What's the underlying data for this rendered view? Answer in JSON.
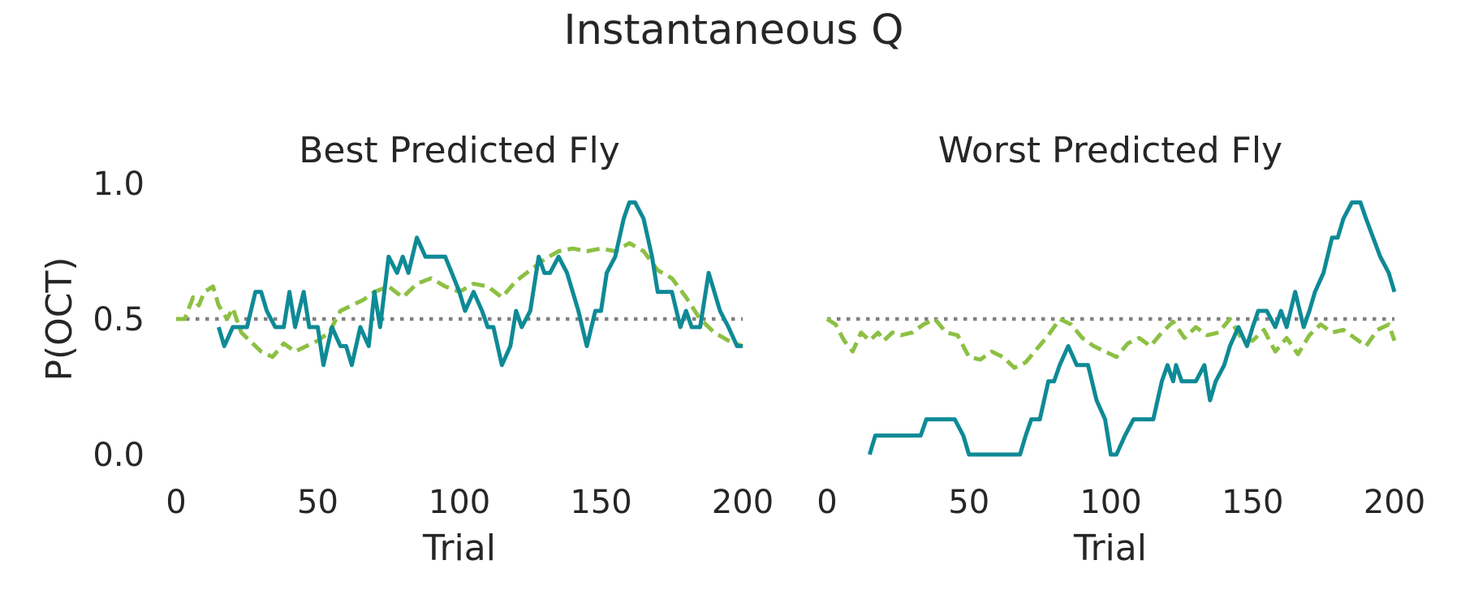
{
  "suptitle": "Instantaneous Q",
  "colors": {
    "observed": "#0e8a96",
    "predicted": "#8cc043",
    "chance": "#808080",
    "text": "#262626"
  },
  "chart_data": [
    {
      "type": "line",
      "title": "Best Predicted Fly",
      "xlabel": "Trial",
      "ylabel": "P(OCT)",
      "xlim": [
        0,
        200
      ],
      "ylim": [
        0,
        1
      ],
      "xticks": [
        "0",
        "50",
        "100",
        "150",
        "200"
      ],
      "yticks": [
        "0.0",
        "0.5",
        "1.0"
      ],
      "grid": false,
      "series": [
        {
          "role": "observed",
          "style": "solid",
          "x": [
            15,
            17,
            20,
            25,
            28,
            30,
            32,
            35,
            38,
            40,
            42,
            45,
            47,
            50,
            52,
            55,
            58,
            60,
            62,
            65,
            68,
            70,
            72,
            75,
            78,
            80,
            82,
            85,
            88,
            90,
            92,
            95,
            100,
            102,
            105,
            108,
            110,
            112,
            115,
            118,
            120,
            122,
            125,
            128,
            130,
            132,
            135,
            138,
            140,
            142,
            145,
            148,
            150,
            152,
            155,
            158,
            160,
            162,
            165,
            168,
            170,
            172,
            175,
            178,
            180,
            182,
            185,
            188,
            190,
            192,
            195,
            198,
            200
          ],
          "y": [
            0.47,
            0.4,
            0.47,
            0.47,
            0.6,
            0.6,
            0.53,
            0.47,
            0.47,
            0.6,
            0.47,
            0.6,
            0.47,
            0.47,
            0.33,
            0.47,
            0.4,
            0.4,
            0.33,
            0.47,
            0.4,
            0.6,
            0.47,
            0.73,
            0.67,
            0.73,
            0.67,
            0.8,
            0.73,
            0.73,
            0.73,
            0.73,
            0.6,
            0.53,
            0.6,
            0.53,
            0.47,
            0.47,
            0.33,
            0.4,
            0.53,
            0.47,
            0.53,
            0.73,
            0.67,
            0.67,
            0.73,
            0.67,
            0.6,
            0.53,
            0.4,
            0.53,
            0.53,
            0.67,
            0.73,
            0.87,
            0.93,
            0.93,
            0.87,
            0.73,
            0.6,
            0.6,
            0.6,
            0.47,
            0.53,
            0.47,
            0.47,
            0.67,
            0.6,
            0.53,
            0.47,
            0.4,
            0.4
          ]
        },
        {
          "role": "predicted",
          "style": "dashed",
          "x": [
            0,
            3,
            6,
            8,
            10,
            13,
            15,
            18,
            20,
            23,
            26,
            30,
            34,
            38,
            42,
            46,
            50,
            54,
            58,
            62,
            66,
            70,
            75,
            80,
            85,
            90,
            95,
            100,
            105,
            110,
            115,
            120,
            125,
            130,
            135,
            140,
            145,
            150,
            155,
            160,
            165,
            170,
            175,
            180,
            185,
            190,
            195,
            200
          ],
          "y": [
            0.5,
            0.5,
            0.58,
            0.55,
            0.6,
            0.62,
            0.55,
            0.5,
            0.54,
            0.45,
            0.42,
            0.38,
            0.36,
            0.41,
            0.38,
            0.4,
            0.42,
            0.45,
            0.53,
            0.55,
            0.57,
            0.6,
            0.62,
            0.58,
            0.63,
            0.65,
            0.62,
            0.6,
            0.63,
            0.62,
            0.58,
            0.64,
            0.68,
            0.72,
            0.75,
            0.76,
            0.75,
            0.76,
            0.75,
            0.78,
            0.75,
            0.68,
            0.65,
            0.58,
            0.5,
            0.45,
            0.42,
            0.4
          ]
        },
        {
          "role": "chance",
          "style": "dotted",
          "x": [
            0,
            200
          ],
          "y": [
            0.5,
            0.5
          ]
        }
      ]
    },
    {
      "type": "line",
      "title": "Worst Predicted Fly",
      "xlabel": "Trial",
      "ylabel": "",
      "xlim": [
        0,
        200
      ],
      "ylim": [
        0,
        1
      ],
      "xticks": [
        "0",
        "50",
        "100",
        "150",
        "200"
      ],
      "yticks": [],
      "grid": false,
      "series": [
        {
          "role": "observed",
          "style": "solid",
          "x": [
            15,
            17,
            20,
            25,
            30,
            33,
            35,
            38,
            40,
            45,
            48,
            50,
            55,
            60,
            65,
            68,
            70,
            72,
            75,
            78,
            80,
            82,
            85,
            88,
            90,
            92,
            95,
            98,
            100,
            102,
            105,
            108,
            110,
            115,
            118,
            120,
            122,
            123,
            125,
            128,
            130,
            133,
            135,
            137,
            140,
            142,
            145,
            148,
            150,
            152,
            155,
            158,
            160,
            162,
            165,
            168,
            170,
            172,
            175,
            178,
            180,
            182,
            185,
            188,
            190,
            195,
            198,
            200
          ],
          "y": [
            0,
            0.07,
            0.07,
            0.07,
            0.07,
            0.07,
            0.13,
            0.13,
            0.13,
            0.13,
            0.07,
            0,
            0,
            0,
            0,
            0,
            0.07,
            0.13,
            0.13,
            0.27,
            0.27,
            0.33,
            0.4,
            0.33,
            0.33,
            0.33,
            0.2,
            0.13,
            0,
            0,
            0.07,
            0.13,
            0.13,
            0.13,
            0.27,
            0.33,
            0.27,
            0.33,
            0.27,
            0.27,
            0.27,
            0.33,
            0.2,
            0.27,
            0.33,
            0.4,
            0.47,
            0.4,
            0.47,
            0.53,
            0.53,
            0.47,
            0.53,
            0.47,
            0.6,
            0.47,
            0.53,
            0.6,
            0.67,
            0.8,
            0.8,
            0.87,
            0.93,
            0.93,
            0.87,
            0.73,
            0.67,
            0.6
          ]
        },
        {
          "role": "predicted",
          "style": "dashed",
          "x": [
            0,
            3,
            6,
            9,
            12,
            15,
            18,
            20,
            23,
            26,
            30,
            34,
            38,
            42,
            46,
            50,
            54,
            58,
            62,
            66,
            70,
            74,
            78,
            82,
            86,
            90,
            94,
            98,
            102,
            106,
            110,
            114,
            118,
            122,
            126,
            130,
            134,
            138,
            142,
            146,
            150,
            154,
            158,
            162,
            166,
            170,
            174,
            178,
            182,
            186,
            190,
            194,
            198,
            200
          ],
          "y": [
            0.5,
            0.48,
            0.42,
            0.38,
            0.45,
            0.42,
            0.45,
            0.42,
            0.45,
            0.44,
            0.45,
            0.48,
            0.5,
            0.45,
            0.44,
            0.36,
            0.35,
            0.38,
            0.36,
            0.32,
            0.34,
            0.39,
            0.44,
            0.5,
            0.48,
            0.43,
            0.4,
            0.38,
            0.36,
            0.41,
            0.43,
            0.4,
            0.45,
            0.49,
            0.43,
            0.47,
            0.44,
            0.45,
            0.5,
            0.43,
            0.42,
            0.46,
            0.38,
            0.43,
            0.37,
            0.44,
            0.48,
            0.45,
            0.46,
            0.43,
            0.4,
            0.46,
            0.48,
            0.42
          ]
        },
        {
          "role": "chance",
          "style": "dotted",
          "x": [
            0,
            200
          ],
          "y": [
            0.5,
            0.5
          ]
        }
      ]
    }
  ]
}
